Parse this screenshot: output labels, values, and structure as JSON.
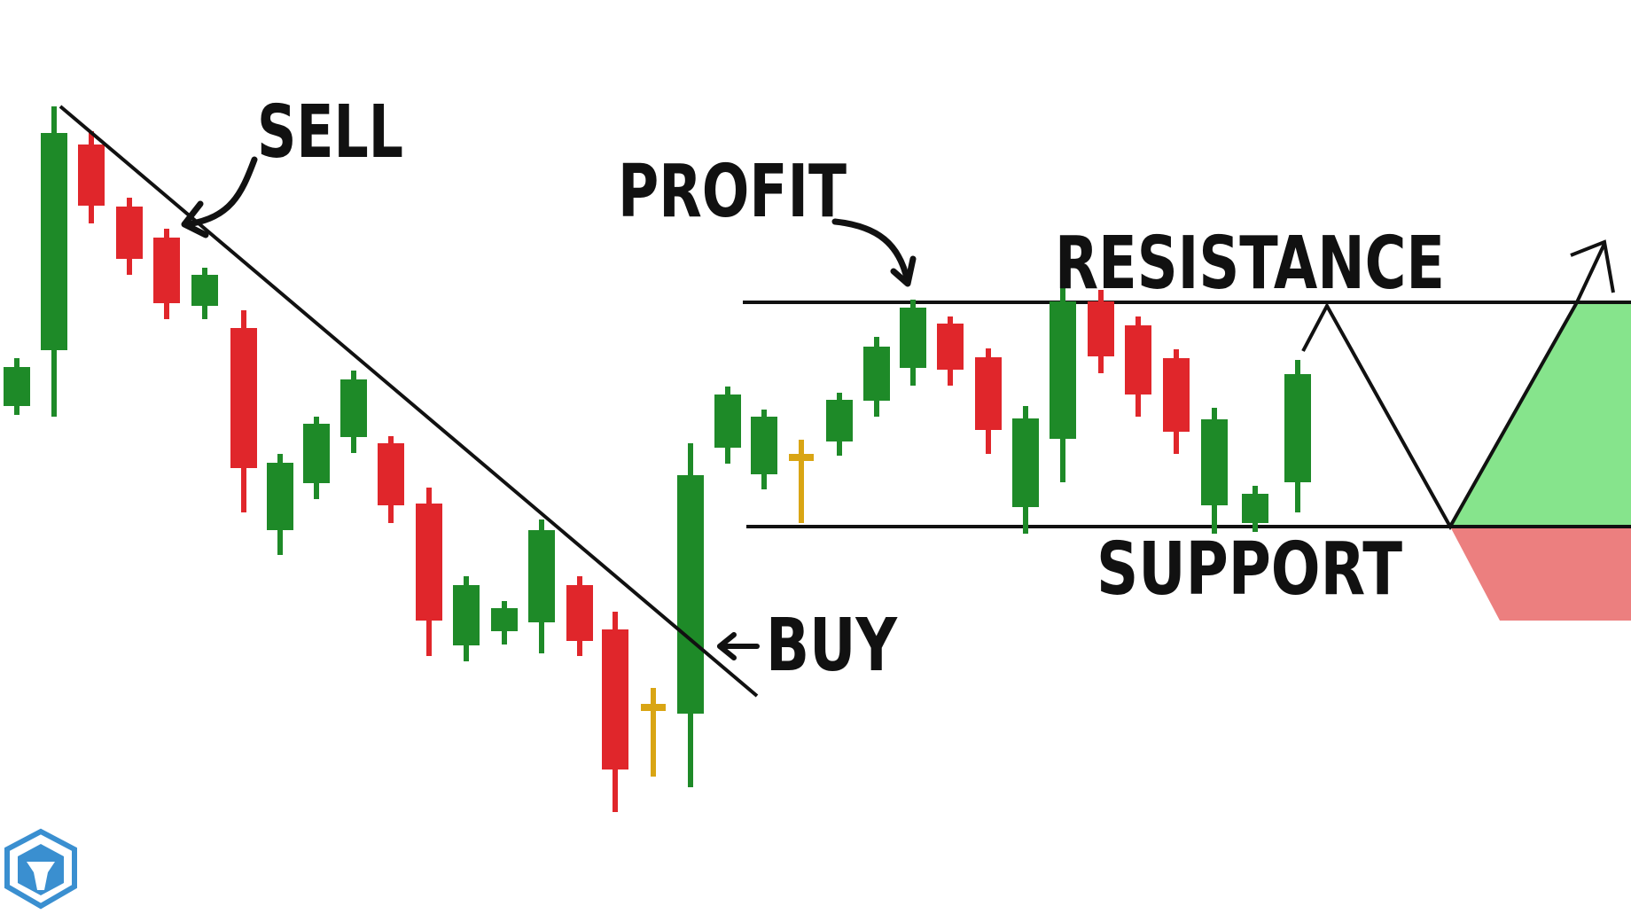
{
  "labels": {
    "sell": "SELL",
    "buy": "BUY",
    "profit": "PROFIT",
    "resistance": "RESISTANCE",
    "support": "SUPPORT"
  },
  "colors": {
    "bull": "#1e8a28",
    "bear": "#e0262b",
    "doji": "#d9a514",
    "line": "#111111",
    "zone_up": "#86e48c",
    "zone_down": "#ec7f7f",
    "logo": "#3a8fd0"
  },
  "icons": {
    "logo": "shield-logo-icon",
    "arrows": "curved-arrow-icon"
  }
}
